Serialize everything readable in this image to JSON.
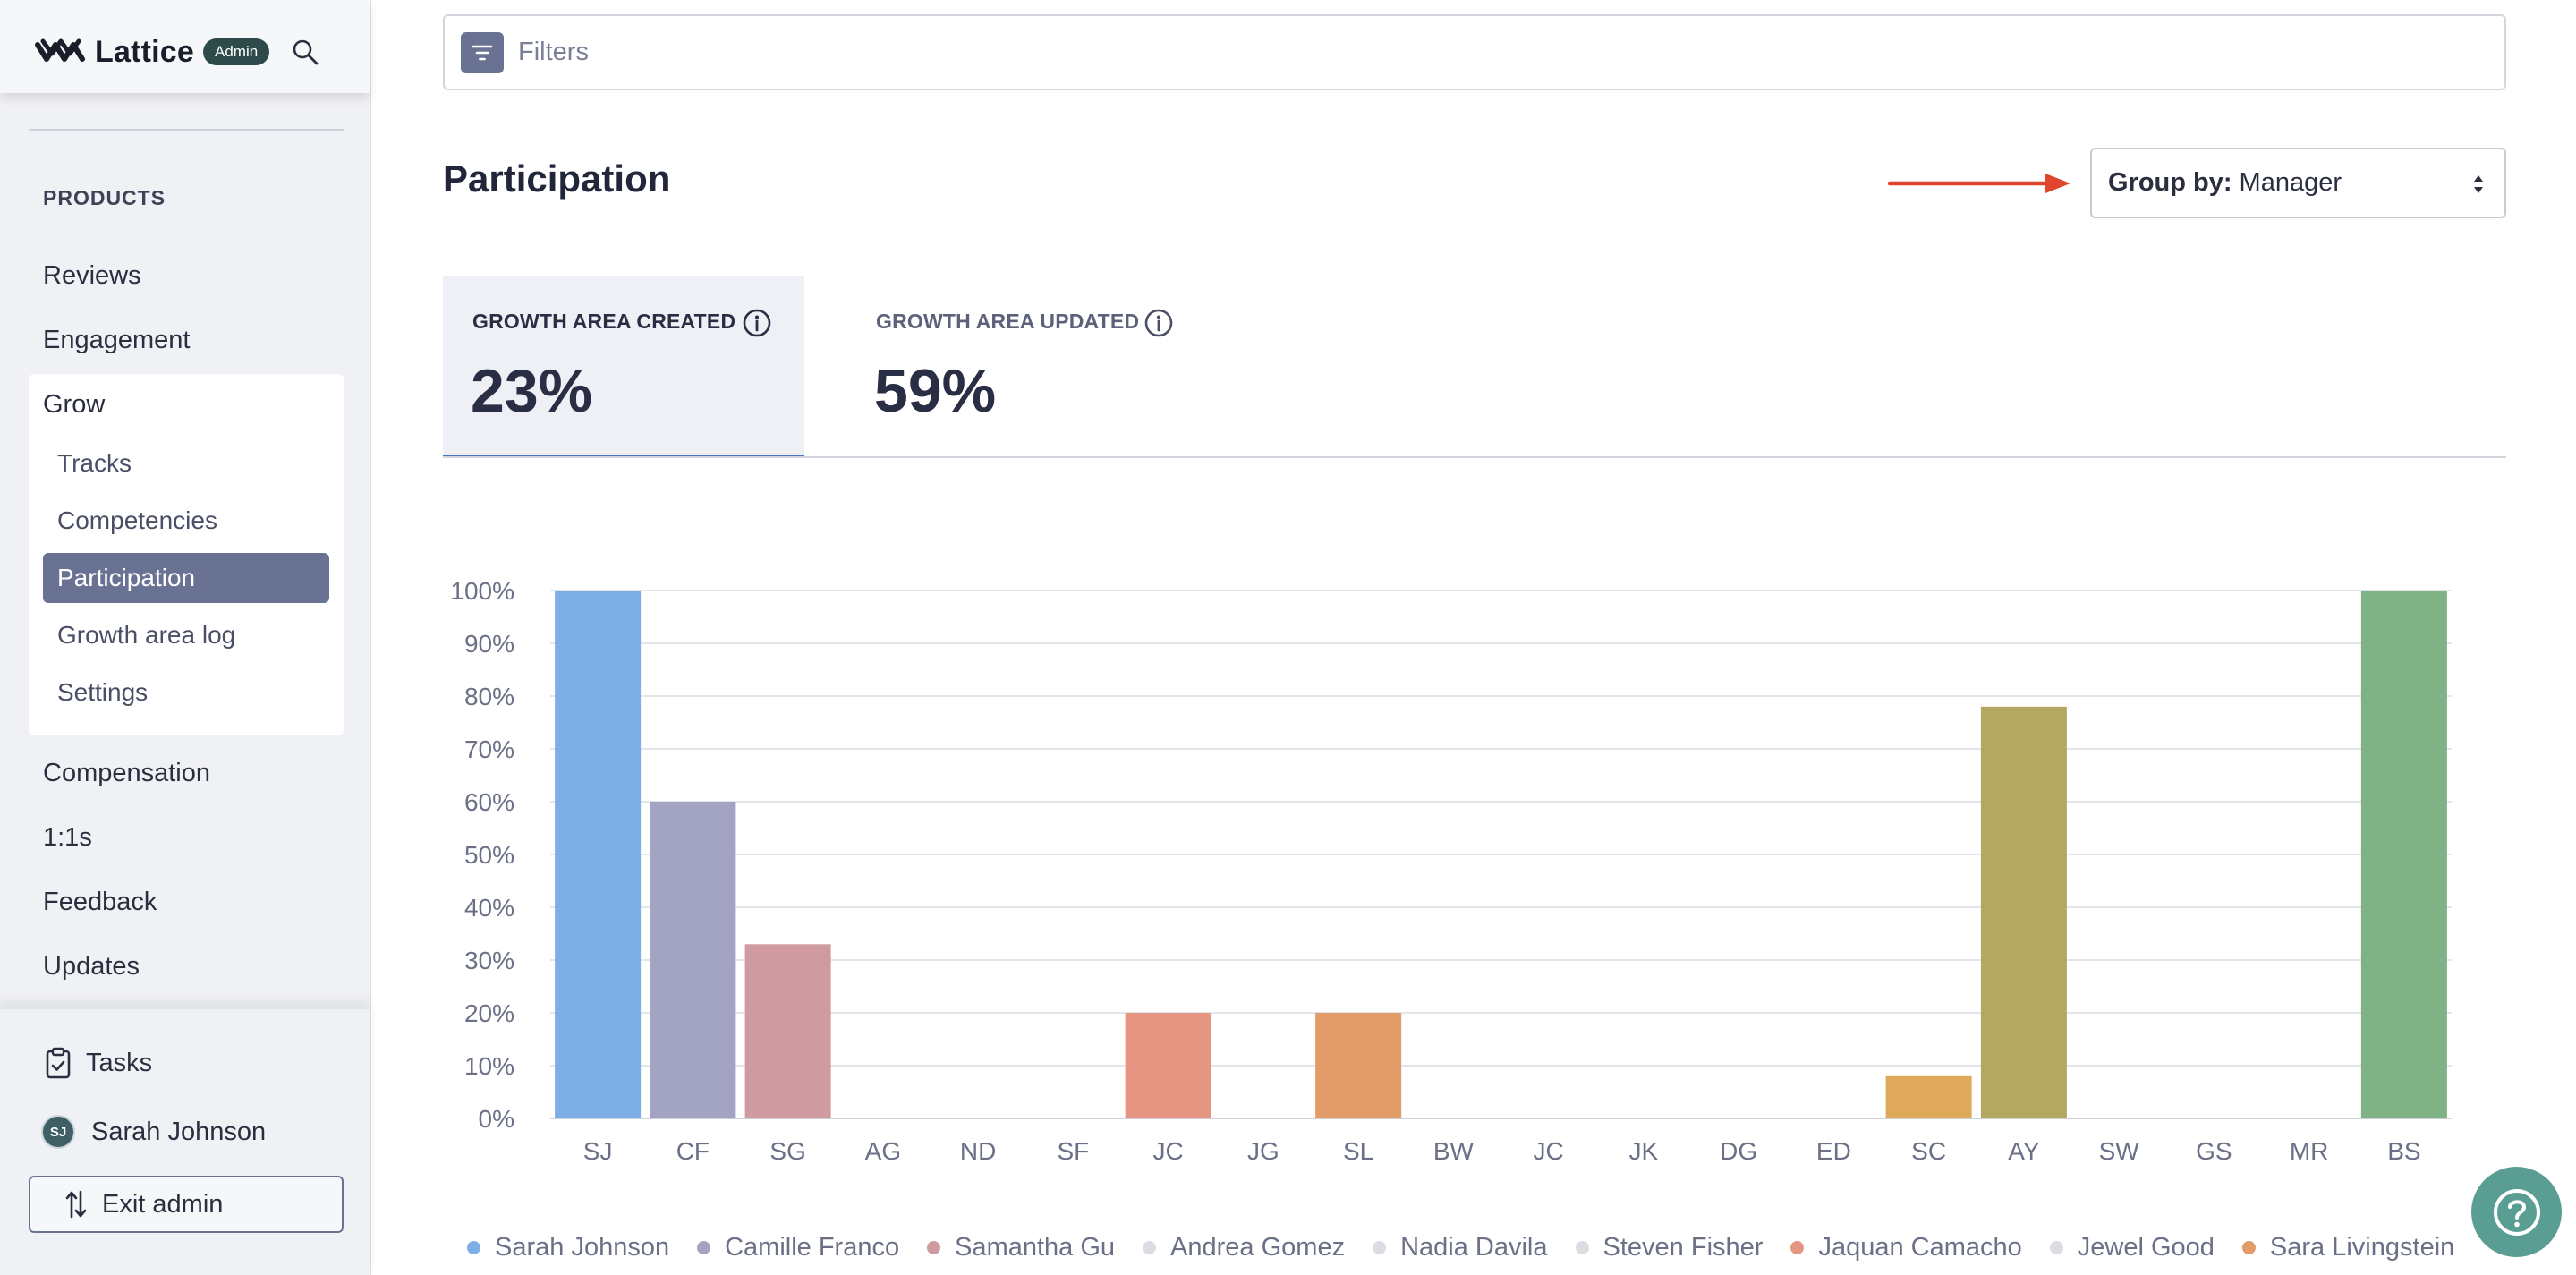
{
  "app": {
    "name": "Lattice",
    "badge": "Admin"
  },
  "sidebar": {
    "section_label": "PRODUCTS",
    "top_items": [
      {
        "label": "Reviews"
      },
      {
        "label": "Engagement"
      }
    ],
    "grow": {
      "label": "Grow",
      "items": [
        {
          "label": "Tracks"
        },
        {
          "label": "Competencies"
        },
        {
          "label": "Participation"
        },
        {
          "label": "Growth area log"
        },
        {
          "label": "Settings"
        }
      ],
      "active": "Participation"
    },
    "bottom_items": [
      {
        "label": "Compensation"
      },
      {
        "label": "1:1s"
      },
      {
        "label": "Feedback"
      },
      {
        "label": "Updates"
      }
    ],
    "tasks_label": "Tasks",
    "user": {
      "initials": "SJ",
      "name": "Sarah Johnson"
    },
    "exit_label": "Exit admin"
  },
  "filters": {
    "placeholder": "Filters"
  },
  "page": {
    "title": "Participation"
  },
  "group_by": {
    "label": "Group by:",
    "value": "Manager"
  },
  "tabs": [
    {
      "label": "GROWTH AREA CREATED",
      "value": "23%",
      "active": true
    },
    {
      "label": "GROWTH AREA UPDATED",
      "value": "59%",
      "active": false
    }
  ],
  "chart_data": {
    "type": "bar",
    "categories": [
      "SJ",
      "CF",
      "SG",
      "AG",
      "ND",
      "SF",
      "JC",
      "JG",
      "SL",
      "BW",
      "JC",
      "JK",
      "DG",
      "ED",
      "SC",
      "AY",
      "SW",
      "GS",
      "MR",
      "BS"
    ],
    "values": [
      100,
      60,
      33,
      0,
      0,
      0,
      20,
      0,
      20,
      0,
      0,
      0,
      0,
      0,
      8,
      78,
      0,
      0,
      0,
      100
    ],
    "colors": [
      "#7eaee6",
      "#a3a3c3",
      "#cf9aa0",
      "#dcdde3",
      "#dcdde3",
      "#dcdde3",
      "#e69582",
      "#dcdde3",
      "#e29c6a",
      "#dcdde3",
      "#dcdde3",
      "#dcdde3",
      "#dcdde3",
      "#dcdde3",
      "#dfa95c",
      "#b2a862",
      "#dcdde3",
      "#dcdde3",
      "#dcdde3",
      "#7fb385"
    ],
    "ylim": [
      0,
      100
    ],
    "yticks": [
      "0%",
      "10%",
      "20%",
      "30%",
      "40%",
      "50%",
      "60%",
      "70%",
      "80%",
      "90%",
      "100%"
    ],
    "grid": true,
    "legend": [
      {
        "name": "Sarah Johnson",
        "color": "#7eaee6"
      },
      {
        "name": "Camille Franco",
        "color": "#a3a3c3"
      },
      {
        "name": "Samantha Gu",
        "color": "#cf9aa0"
      },
      {
        "name": "Andrea Gomez",
        "color": "#dcdde3"
      },
      {
        "name": "Nadia Davila",
        "color": "#dcdde3"
      },
      {
        "name": "Steven Fisher",
        "color": "#dcdde3"
      },
      {
        "name": "Jaquan Camacho",
        "color": "#e69582"
      },
      {
        "name": "Jewel Good",
        "color": "#dcdde3"
      },
      {
        "name": "Sara Livingstein",
        "color": "#e29c6a"
      }
    ],
    "legend_position": "bottom"
  },
  "colors": {
    "accent": "#6a7294",
    "tab_underline": "#4a74c4",
    "help": "#5a9e93",
    "arrow": "#e0462d"
  }
}
